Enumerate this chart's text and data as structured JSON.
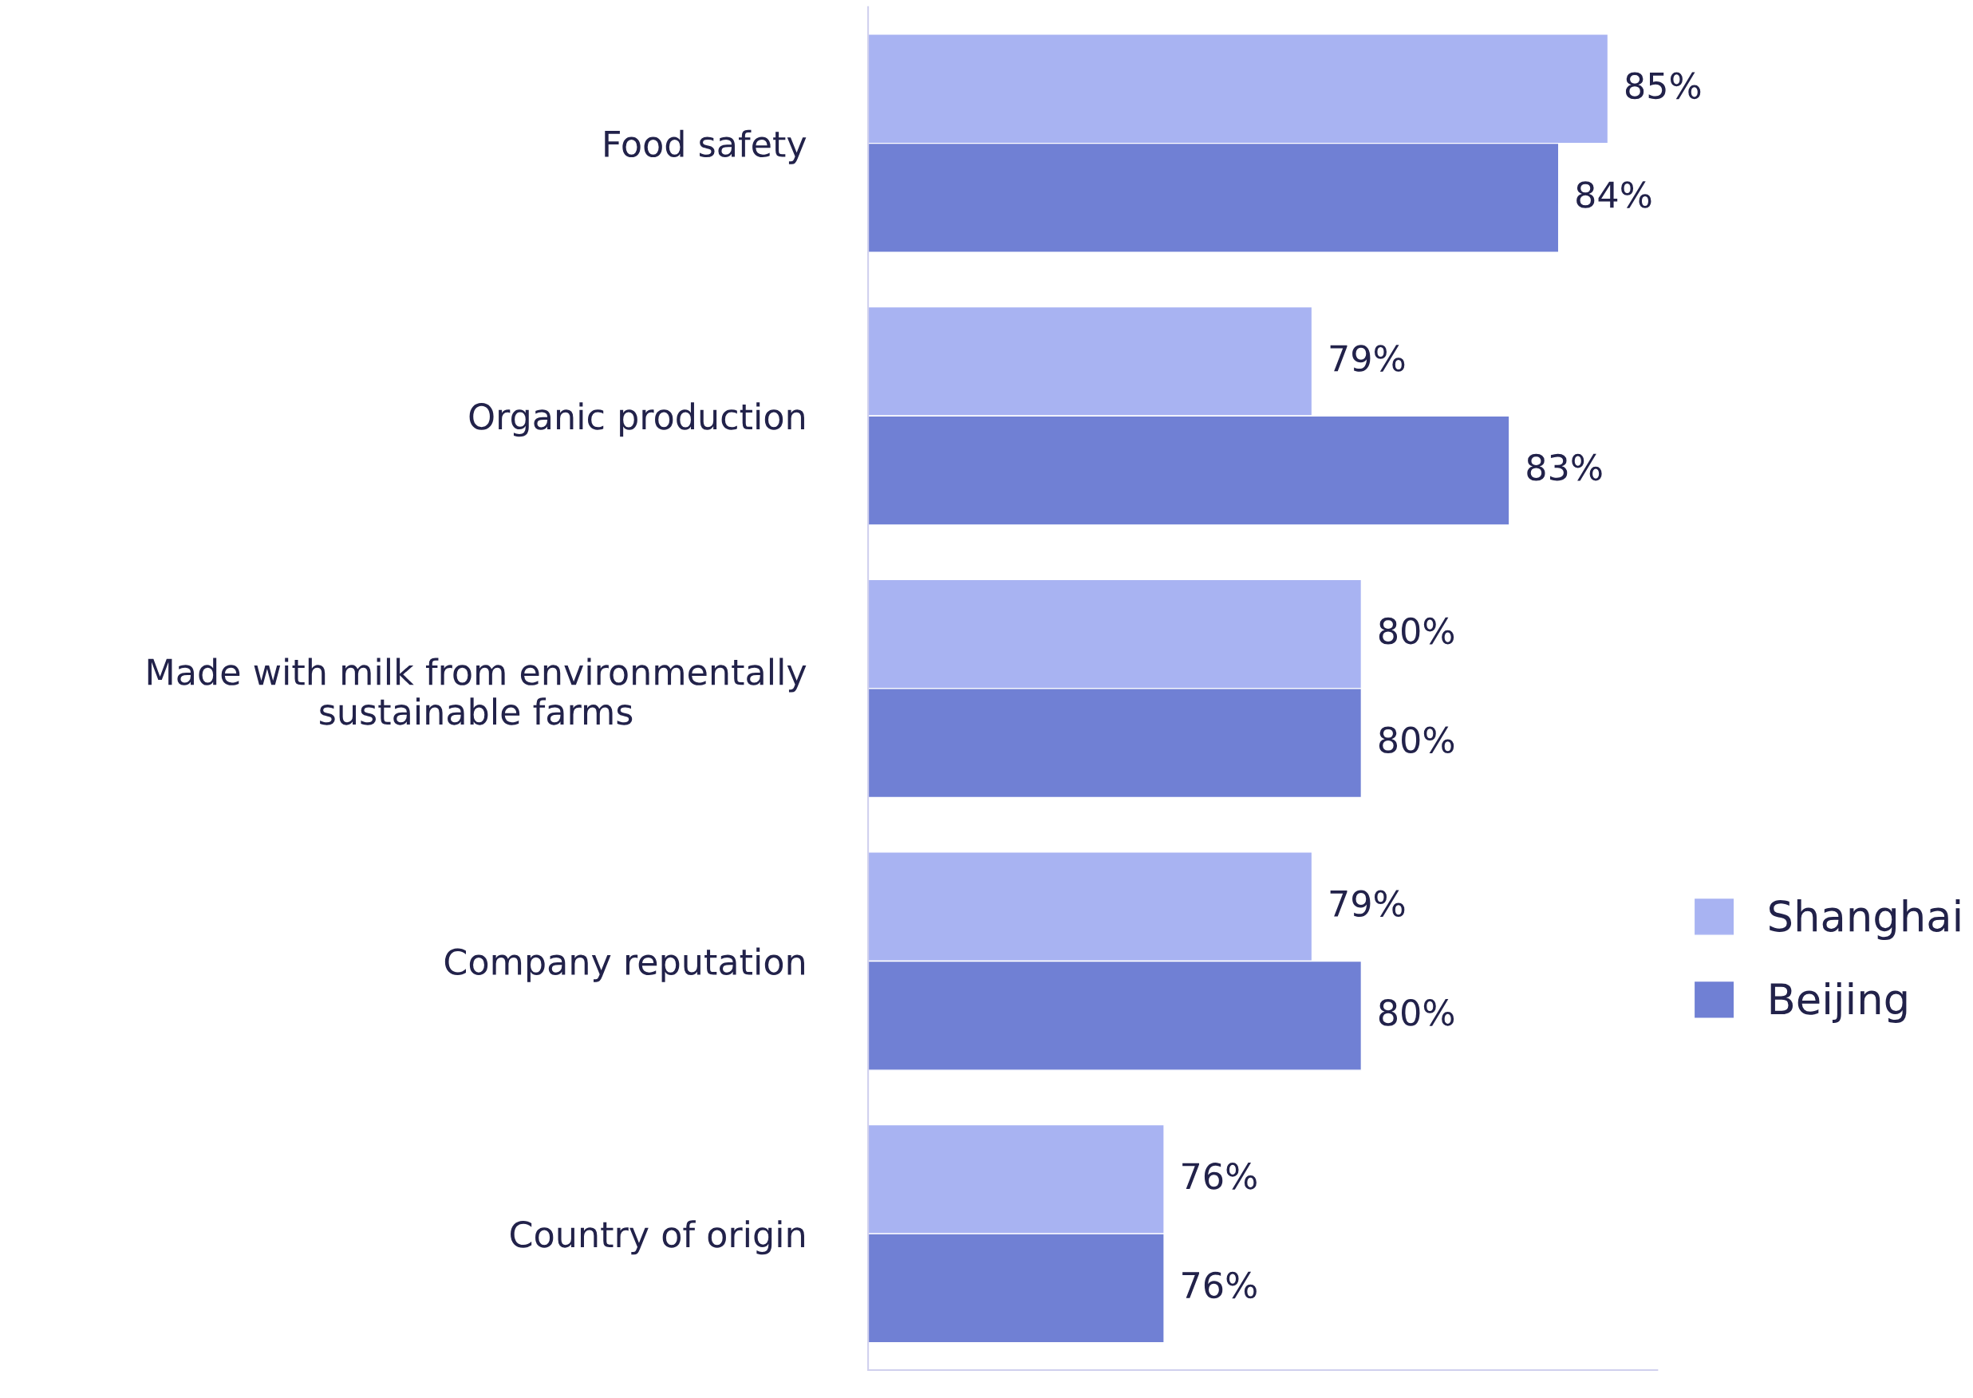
{
  "chart_data": {
    "type": "bar",
    "orientation": "horizontal",
    "categories": [
      "Food safety",
      "Organic production",
      "Made with milk from environmentally\nsustainable farms",
      "Company reputation",
      "Country of origin"
    ],
    "series": [
      {
        "name": "Shanghai",
        "color": "#a8b3f2",
        "values": [
          85,
          79,
          80,
          79,
          76
        ],
        "value_labels": [
          "85%",
          "79%",
          "80%",
          "79%",
          "76%"
        ]
      },
      {
        "name": "Beijing",
        "color": "#7080d4",
        "values": [
          84,
          83,
          80,
          80,
          76
        ],
        "value_labels": [
          "84%",
          "83%",
          "80%",
          "80%",
          "76%"
        ]
      }
    ],
    "xlim": [
      70,
      86
    ],
    "tick_labels": "y",
    "grid": false,
    "legend": "right"
  }
}
